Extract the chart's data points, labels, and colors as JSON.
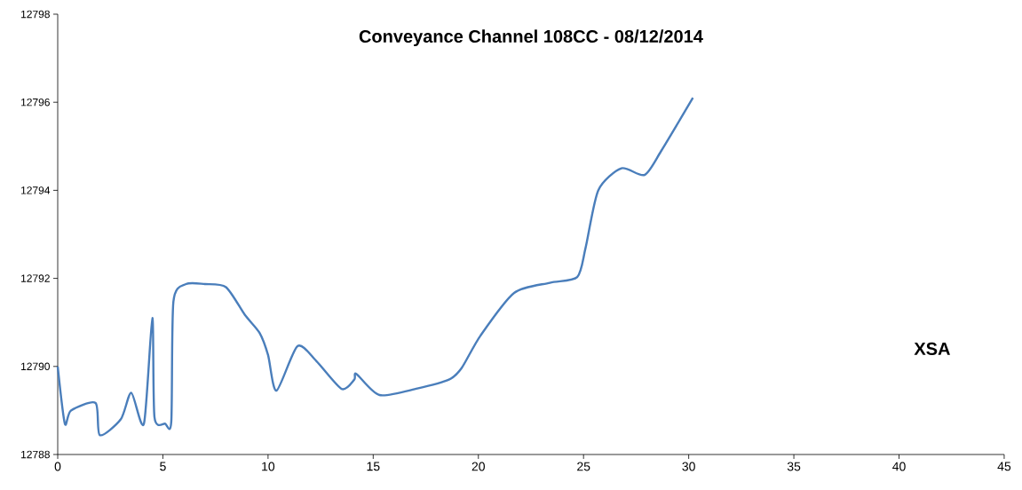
{
  "chart_data": {
    "type": "line",
    "title": "Conveyance Channel 108CC - 08/12/2014",
    "annotations": [
      "XSA"
    ],
    "xlim": [
      0,
      45
    ],
    "xticks": [
      0,
      5,
      10,
      15,
      20,
      25,
      30,
      35,
      40,
      45
    ],
    "ylim": [
      12788,
      12798
    ],
    "yticks": [
      12788,
      12790,
      12792,
      12794,
      12796,
      12798
    ],
    "grid": false,
    "marker": "none",
    "line_style": "solid",
    "series": [
      {
        "color": "#4a7ebb",
        "x": [
          0,
          0.34,
          0.63,
          1.8,
          2.0,
          3.0,
          3.5,
          4.1,
          4.5,
          4.6,
          5.1,
          5.4,
          5.5,
          6.1,
          7.0,
          8.0,
          8.9,
          9.6,
          10.0,
          10.4,
          11.4,
          12.3,
          13.5,
          14.1,
          14.2,
          15.3,
          17.1,
          18.6,
          19.2,
          20.1,
          21.7,
          23.4,
          24.7,
          25.1,
          25.7,
          26.8,
          27.9,
          28.7,
          30.2
        ],
        "values": [
          12790.0,
          12788.7,
          12789.0,
          12789.17,
          12788.44,
          12788.8,
          12789.4,
          12788.7,
          12791.1,
          12788.85,
          12788.7,
          12788.75,
          12791.47,
          12791.87,
          12791.87,
          12791.8,
          12791.17,
          12790.76,
          12790.26,
          12789.45,
          12790.46,
          12790.12,
          12789.49,
          12789.7,
          12789.83,
          12789.35,
          12789.5,
          12789.7,
          12789.96,
          12790.7,
          12791.67,
          12791.9,
          12792.03,
          12792.7,
          12794.0,
          12794.5,
          12794.35,
          12794.9,
          12796.1
        ]
      }
    ]
  }
}
